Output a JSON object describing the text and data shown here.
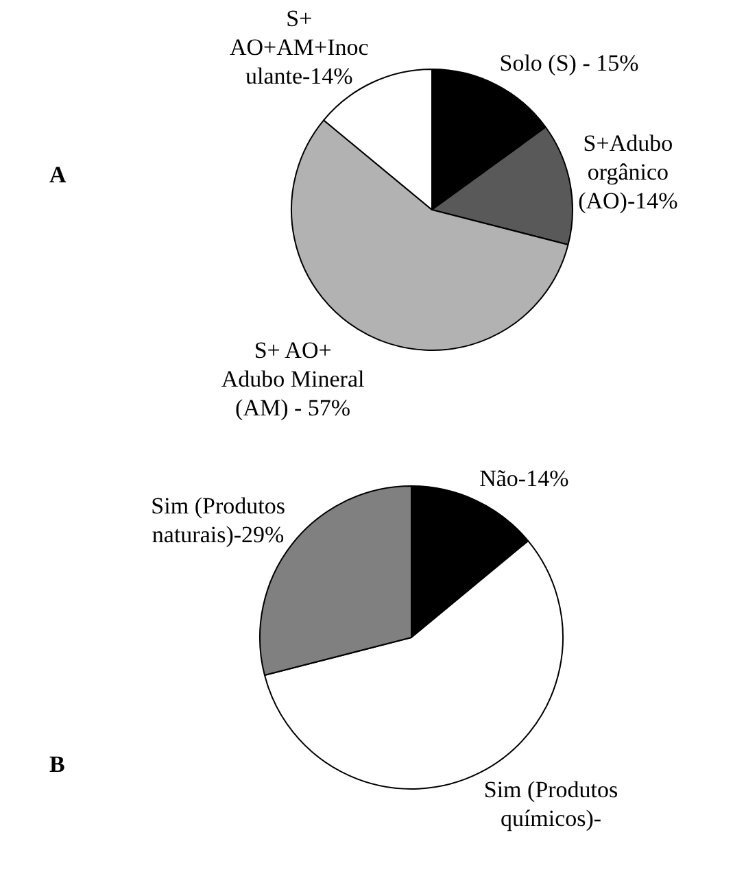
{
  "chart_data": [
    {
      "type": "pie",
      "title": "A",
      "categories": [
        "Solo (S) - 15%",
        "S+Adubo\norgânico\n(AO)-14%",
        "S+ AO+\nAdubo Mineral\n(AM) - 57%",
        "S+\nAO+AM+Inoc\nulante-14%"
      ],
      "values": [
        15,
        14,
        57,
        14
      ],
      "colors": [
        "#000000",
        "#595959",
        "#b2b2b2",
        "#ffffff"
      ],
      "legend": false
    },
    {
      "type": "pie",
      "title": "B",
      "categories": [
        "Não-14%",
        "Sim (Produtos\nquímicos)-",
        "Sim (Produtos\nnaturais)-29%"
      ],
      "values": [
        14,
        57,
        29
      ],
      "colors": [
        "#000000",
        "#ffffff",
        "#808080"
      ],
      "legend": false
    }
  ]
}
